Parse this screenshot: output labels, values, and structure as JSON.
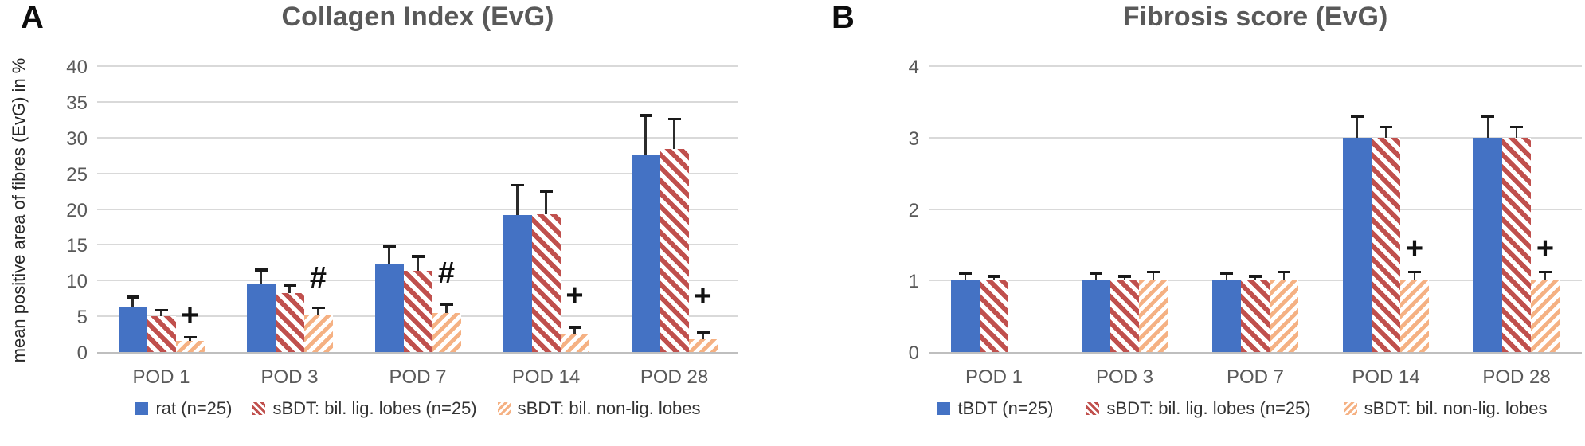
{
  "figure": {
    "background": "#ffffff",
    "description": "Two-panel bar chart figure with panels A and B"
  },
  "colors": {
    "blue": "#4472C4",
    "red": "#C0504D",
    "orange": "#F5B183",
    "gridline": "#D9D9D9",
    "axis_text": "#595959",
    "title_text": "#595959",
    "error_bar": "#1A1A1A"
  },
  "chart_data": [
    {
      "type": "bar",
      "corner_label": "A",
      "title": "Collagen Index (EvG)",
      "xlabel": "",
      "ylabel": "mean positive area of fibres (EvG) in %",
      "ylim": [
        0,
        40
      ],
      "ytick_step": 5,
      "grid": true,
      "legend_position": "bottom",
      "categories": [
        "POD 1",
        "POD 3",
        "POD 7",
        "POD 14",
        "POD 28"
      ],
      "series": [
        {
          "name": "rat (n=25)",
          "style": "solid-blue",
          "values": [
            6.3,
            9.5,
            12.3,
            19.2,
            27.5
          ],
          "err_up": [
            1.4,
            2.0,
            2.5,
            4.2,
            5.6
          ]
        },
        {
          "name": "sBDT: bil. lig. lobes (n=25)",
          "style": "striped-red",
          "values": [
            5.0,
            8.2,
            11.4,
            19.3,
            28.4
          ],
          "err_up": [
            0.9,
            1.2,
            2.0,
            3.2,
            4.2
          ]
        },
        {
          "name": "sBDT: bil. non-lig. lobes",
          "style": "striped-orange",
          "values": [
            1.6,
            5.2,
            5.5,
            2.6,
            1.8
          ],
          "err_up": [
            0.5,
            1.0,
            1.2,
            0.9,
            1.0
          ]
        }
      ],
      "annotations": [
        {
          "category": "POD 1",
          "symbol": "+",
          "y": 5.1
        },
        {
          "category": "POD 3",
          "symbol": "#",
          "y": 10.4
        },
        {
          "category": "POD 7",
          "symbol": "#",
          "y": 11.0
        },
        {
          "category": "POD 14",
          "symbol": "+",
          "y": 7.9
        },
        {
          "category": "POD 28",
          "symbol": "+",
          "y": 7.8
        }
      ]
    },
    {
      "type": "bar",
      "corner_label": "B",
      "title": "Fibrosis score (EvG)",
      "xlabel": "",
      "ylabel": "",
      "ylim": [
        0,
        4
      ],
      "ytick_step": 1,
      "grid": true,
      "legend_position": "bottom",
      "categories": [
        "POD 1",
        "POD 3",
        "POD 7",
        "POD 14",
        "POD 28"
      ],
      "series": [
        {
          "name": "tBDT (n=25)",
          "style": "solid-blue",
          "values": [
            1,
            1,
            1,
            3,
            3
          ],
          "err_up": [
            0.1,
            0.1,
            0.1,
            0.3,
            0.3
          ]
        },
        {
          "name": "sBDT: bil. lig. lobes (n=25)",
          "style": "striped-red",
          "values": [
            1,
            1,
            1,
            3,
            3
          ],
          "err_up": [
            0.06,
            0.06,
            0.06,
            0.15,
            0.15
          ]
        },
        {
          "name": "sBDT: bil. non-lig. lobes",
          "style": "striped-orange",
          "values": [
            0,
            1,
            1,
            1,
            1
          ],
          "err_up": [
            0,
            0.12,
            0.12,
            0.12,
            0.12
          ]
        }
      ],
      "annotations": [
        {
          "category": "POD 14",
          "symbol": "+",
          "y": 1.45
        },
        {
          "category": "POD 28",
          "symbol": "+",
          "y": 1.45
        }
      ]
    }
  ]
}
